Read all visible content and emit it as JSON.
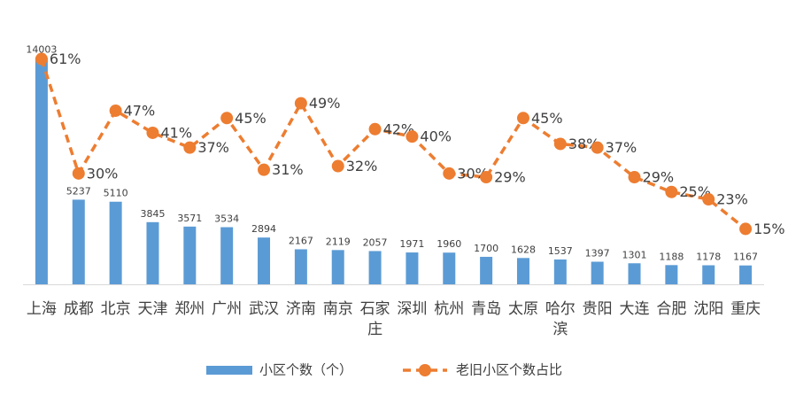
{
  "chart_data": {
    "type": "bar-line",
    "categories": [
      "上海",
      "成都",
      "北京",
      "天津",
      "郑州",
      "广州",
      "武汉",
      "济南",
      "南京",
      "石家庄",
      "深圳",
      "杭州",
      "青岛",
      "太原",
      "哈尔滨",
      "贵阳",
      "大连",
      "合肥",
      "沈阳",
      "重庆"
    ],
    "series": [
      {
        "name": "小区个数（个）",
        "color": "#5b9bd5",
        "type": "bar",
        "values": [
          14003,
          5237,
          5110,
          3845,
          3571,
          3534,
          2894,
          2167,
          2119,
          2057,
          1971,
          1960,
          1700,
          1628,
          1537,
          1397,
          1301,
          1188,
          1178,
          1167
        ]
      },
      {
        "name": "老旧小区个数占比",
        "color": "#ed7d31",
        "type": "line",
        "axis": "y2",
        "values": [
          61,
          30,
          47,
          41,
          37,
          45,
          31,
          49,
          32,
          42,
          40,
          30,
          29,
          45,
          38,
          37,
          29,
          25,
          23,
          15
        ],
        "value_labels": [
          "61%",
          "30%",
          "47%",
          "41%",
          "37%",
          "45%",
          "31%",
          "49%",
          "32%",
          "42%",
          "40%",
          "30%",
          "29%",
          "45%",
          "38%",
          "37%",
          "29%",
          "25%",
          "23%",
          "15%"
        ]
      }
    ],
    "ylim": [
      0,
      16000
    ],
    "y2lim": [
      0,
      70
    ]
  }
}
